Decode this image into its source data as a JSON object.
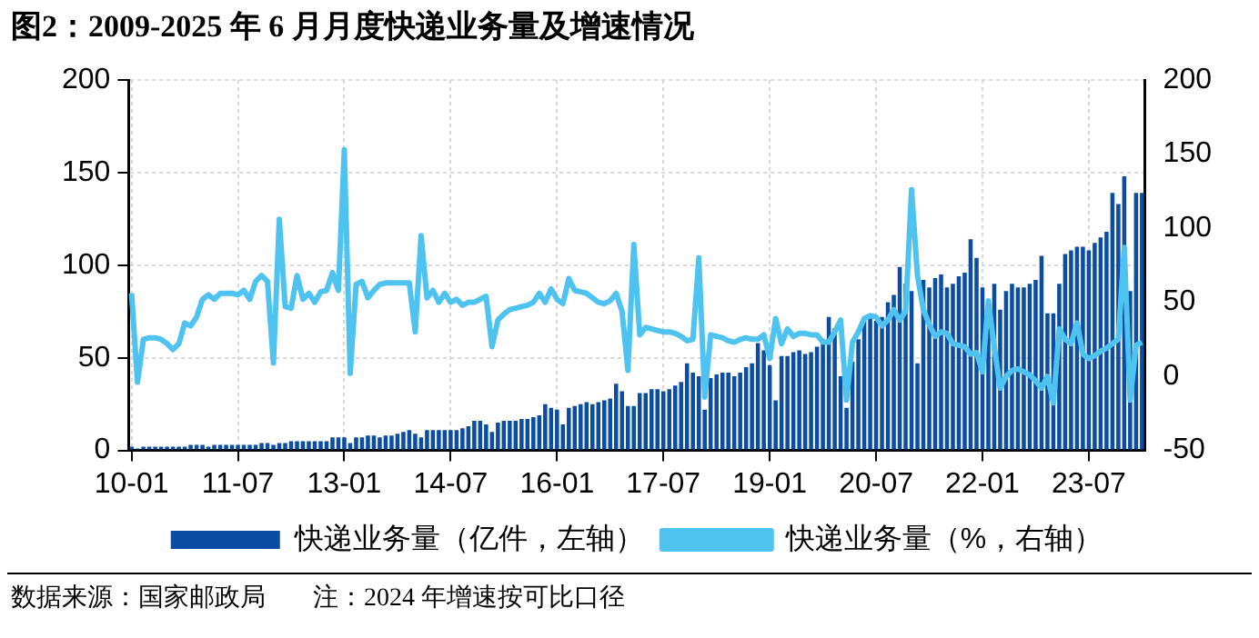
{
  "chart_data": {
    "type": "bar",
    "title": "图2：2009-2025 年 6 月月度快递业务量及增速情况",
    "annotations": [
      "数据来源：国家邮政局",
      "注：2024 年增速按可比口径"
    ],
    "categories": [
      "10-01",
      null,
      null,
      null,
      null,
      null,
      null,
      null,
      null,
      null,
      null,
      null,
      null,
      null,
      null,
      null,
      null,
      null,
      "11-07",
      null,
      null,
      null,
      null,
      null,
      null,
      null,
      null,
      null,
      null,
      null,
      null,
      null,
      null,
      null,
      null,
      null,
      "13-01",
      null,
      null,
      null,
      null,
      null,
      null,
      null,
      null,
      null,
      null,
      null,
      null,
      null,
      null,
      null,
      null,
      null,
      "14-07",
      null,
      null,
      null,
      null,
      null,
      null,
      null,
      null,
      null,
      null,
      null,
      null,
      null,
      null,
      null,
      null,
      null,
      "16-01",
      null,
      null,
      null,
      null,
      null,
      null,
      null,
      null,
      null,
      null,
      null,
      null,
      null,
      null,
      null,
      null,
      null,
      "17-07",
      null,
      null,
      null,
      null,
      null,
      null,
      null,
      null,
      null,
      null,
      null,
      null,
      null,
      null,
      null,
      null,
      null,
      "19-01",
      null,
      null,
      null,
      null,
      null,
      null,
      null,
      null,
      null,
      null,
      null,
      null,
      null,
      null,
      null,
      null,
      null,
      "20-07",
      null,
      null,
      null,
      null,
      null,
      null,
      null,
      null,
      null,
      null,
      null,
      null,
      null,
      null,
      null,
      null,
      null,
      "22-01",
      null,
      null,
      null,
      null,
      null,
      null,
      null,
      null,
      null,
      null,
      null,
      null,
      null,
      null,
      null,
      null,
      null,
      "23-07",
      null,
      null,
      null,
      null,
      null,
      null,
      null,
      null,
      null
    ],
    "series": [
      {
        "name": "快递业务量（亿件，左轴）",
        "color": "#0b4da2",
        "values": [
          2,
          1,
          2,
          2,
          2,
          2,
          2,
          2,
          2,
          2,
          3,
          3,
          3,
          2,
          3,
          3,
          3,
          3,
          3,
          3,
          3,
          3,
          4,
          4,
          3,
          4,
          4,
          5,
          5,
          5,
          5,
          5,
          5,
          5,
          7,
          7,
          7,
          4,
          7,
          7,
          8,
          8,
          7,
          8,
          8,
          9,
          10,
          11,
          9,
          7,
          11,
          11,
          11,
          11,
          11,
          11,
          12,
          13,
          16,
          16,
          14,
          10,
          15,
          16,
          16,
          16,
          17,
          17,
          18,
          19,
          25,
          23,
          22,
          14,
          23,
          24,
          25,
          26,
          25,
          26,
          27,
          28,
          36,
          32,
          24,
          24,
          31,
          31,
          33,
          33,
          32,
          33,
          35,
          37,
          47,
          42,
          40,
          22,
          39,
          41,
          42,
          42,
          40,
          42,
          45,
          47,
          58,
          54,
          46,
          27,
          51,
          51,
          53,
          54,
          52,
          53,
          56,
          60,
          72,
          66,
          40,
          23,
          48,
          60,
          70,
          72,
          70,
          72,
          80,
          84,
          99,
          90,
          86,
          47,
          92,
          88,
          93,
          95,
          88,
          90,
          94,
          96,
          114,
          104,
          88,
          70,
          90,
          76,
          86,
          90,
          88,
          88,
          90,
          92,
          105,
          74,
          74,
          90,
          106,
          108,
          110,
          110,
          108,
          112,
          115,
          118,
          139,
          133,
          148,
          86,
          139,
          139
        ]
      },
      {
        "name": "快递业务量（%，右轴）",
        "type": "line",
        "axis": "y2",
        "color": "#4fc3f0",
        "values": [
          56,
          -4,
          25,
          26,
          26,
          25,
          22,
          18,
          22,
          36,
          34,
          40,
          52,
          55,
          52,
          56,
          56,
          56,
          55,
          58,
          52,
          64,
          68,
          64,
          9,
          106,
          47,
          46,
          68,
          52,
          56,
          50,
          57,
          58,
          70,
          58,
          153,
          2,
          62,
          64,
          53,
          58,
          62,
          63,
          63,
          63,
          63,
          63,
          30,
          95,
          53,
          58,
          50,
          56,
          50,
          52,
          48,
          50,
          50,
          52,
          54,
          20,
          38,
          42,
          45,
          46,
          47,
          48,
          50,
          56,
          50,
          59,
          52,
          49,
          66,
          58,
          57,
          56,
          53,
          50,
          49,
          51,
          56,
          44,
          4,
          89,
          28,
          33,
          32,
          31,
          30,
          30,
          29,
          27,
          24,
          25,
          80,
          -14,
          28,
          27,
          26,
          24,
          23,
          25,
          26,
          25,
          25,
          28,
          12,
          39,
          22,
          32,
          27,
          29,
          29,
          28,
          28,
          23,
          23,
          30,
          38,
          -16,
          23,
          30,
          39,
          41,
          40,
          34,
          38,
          45,
          38,
          44,
          126,
          68,
          45,
          35,
          27,
          30,
          29,
          22,
          21,
          20,
          15,
          16,
          3,
          51,
          20,
          -8,
          0,
          4,
          5,
          3,
          1,
          -3,
          -8,
          0,
          -18,
          32,
          25,
          22,
          36,
          15,
          12,
          14,
          17,
          19,
          22,
          25,
          87,
          -16,
          21,
          23
        ]
      }
    ],
    "ylim": [
      0,
      200
    ],
    "yticks": [
      0,
      50,
      100,
      150,
      200
    ],
    "y2lim": [
      -50,
      200
    ],
    "y2ticks": [
      -50,
      0,
      50,
      100,
      150,
      200
    ],
    "grid": true,
    "legend": "bottom"
  }
}
